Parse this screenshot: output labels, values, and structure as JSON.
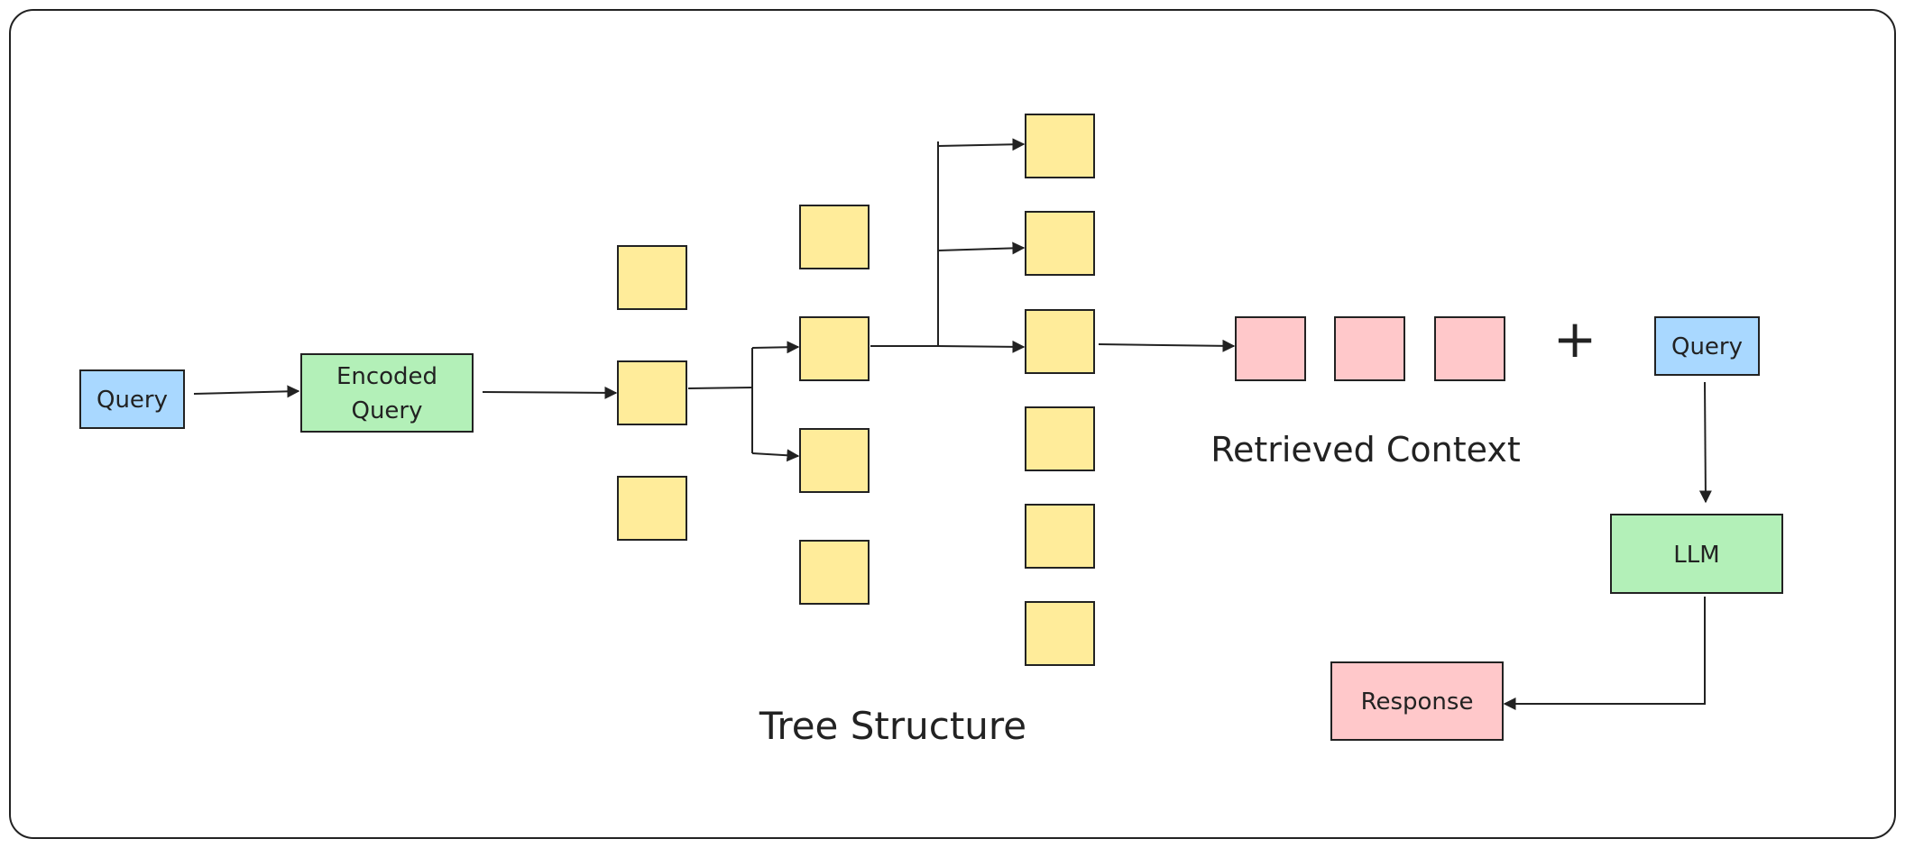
{
  "nodes": {
    "query_in": {
      "label": "Query",
      "color": "#a9d8ff"
    },
    "encoded_query": {
      "label_lines": [
        "Encoded",
        "Query"
      ],
      "color": "#b3f0b8"
    },
    "query_right": {
      "label": "Query",
      "color": "#a9d8ff"
    },
    "llm": {
      "label": "LLM",
      "color": "#b3f0b8"
    },
    "response": {
      "label": "Response",
      "color": "#ffc8ca"
    }
  },
  "tree": {
    "label": "Tree Structure",
    "node_color": "#ffec9a",
    "level_sizes": [
      3,
      4,
      6
    ],
    "selected_path_index": [
      1,
      1,
      2
    ]
  },
  "context": {
    "label": "Retrieved Context",
    "chunk_count": 3,
    "chunk_color": "#ffc8ca"
  },
  "plus_sign": "+",
  "colors": {
    "stroke": "#222222",
    "frame": "#222222",
    "background": "#ffffff"
  }
}
